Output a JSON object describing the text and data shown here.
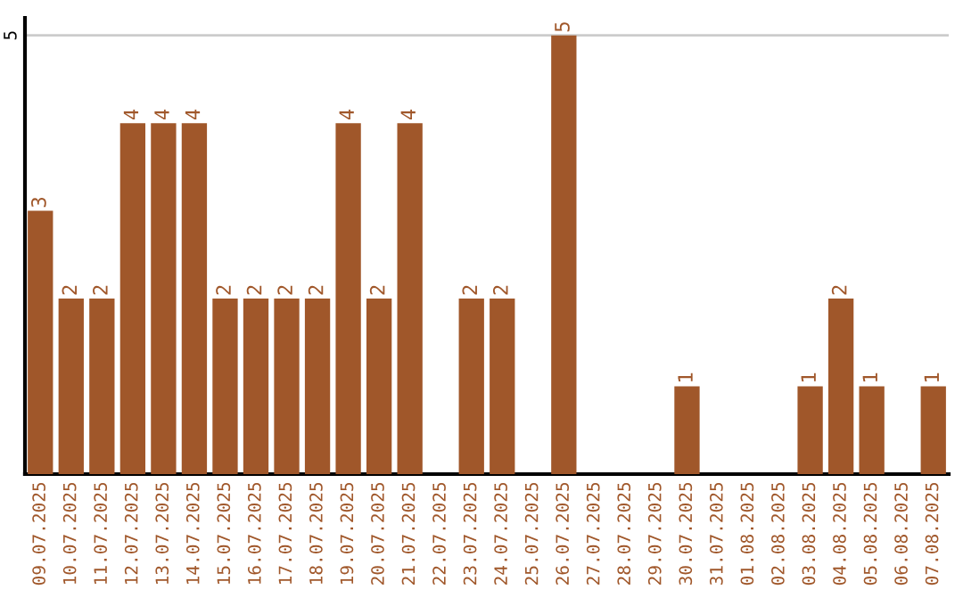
{
  "chart_data": {
    "type": "bar",
    "categories": [
      "09.07.2025",
      "10.07.2025",
      "11.07.2025",
      "12.07.2025",
      "13.07.2025",
      "14.07.2025",
      "15.07.2025",
      "16.07.2025",
      "17.07.2025",
      "18.07.2025",
      "19.07.2025",
      "20.07.2025",
      "21.07.2025",
      "22.07.2025",
      "23.07.2025",
      "24.07.2025",
      "25.07.2025",
      "26.07.2025",
      "27.07.2025",
      "28.07.2025",
      "29.07.2025",
      "30.07.2025",
      "31.07.2025",
      "01.08.2025",
      "02.08.2025",
      "03.08.2025",
      "04.08.2025",
      "05.08.2025",
      "06.08.2025",
      "07.08.2025"
    ],
    "values": [
      3,
      2,
      2,
      4,
      4,
      4,
      2,
      2,
      2,
      2,
      4,
      2,
      4,
      0,
      2,
      2,
      0,
      5,
      0,
      0,
      0,
      1,
      0,
      0,
      0,
      1,
      2,
      1,
      0,
      1
    ],
    "value_labels": [
      "3",
      "2",
      "2",
      "4",
      "4",
      "4",
      "2",
      "2",
      "2",
      "2",
      "4",
      "2",
      "4",
      null,
      "2",
      "2",
      null,
      "5",
      null,
      null,
      null,
      "1",
      null,
      null,
      null,
      "1",
      "2",
      "1",
      null,
      "1"
    ],
    "color": "#a0572a",
    "ylim": [
      0,
      5.2
    ],
    "yticks": [
      5
    ],
    "grid": "y"
  }
}
